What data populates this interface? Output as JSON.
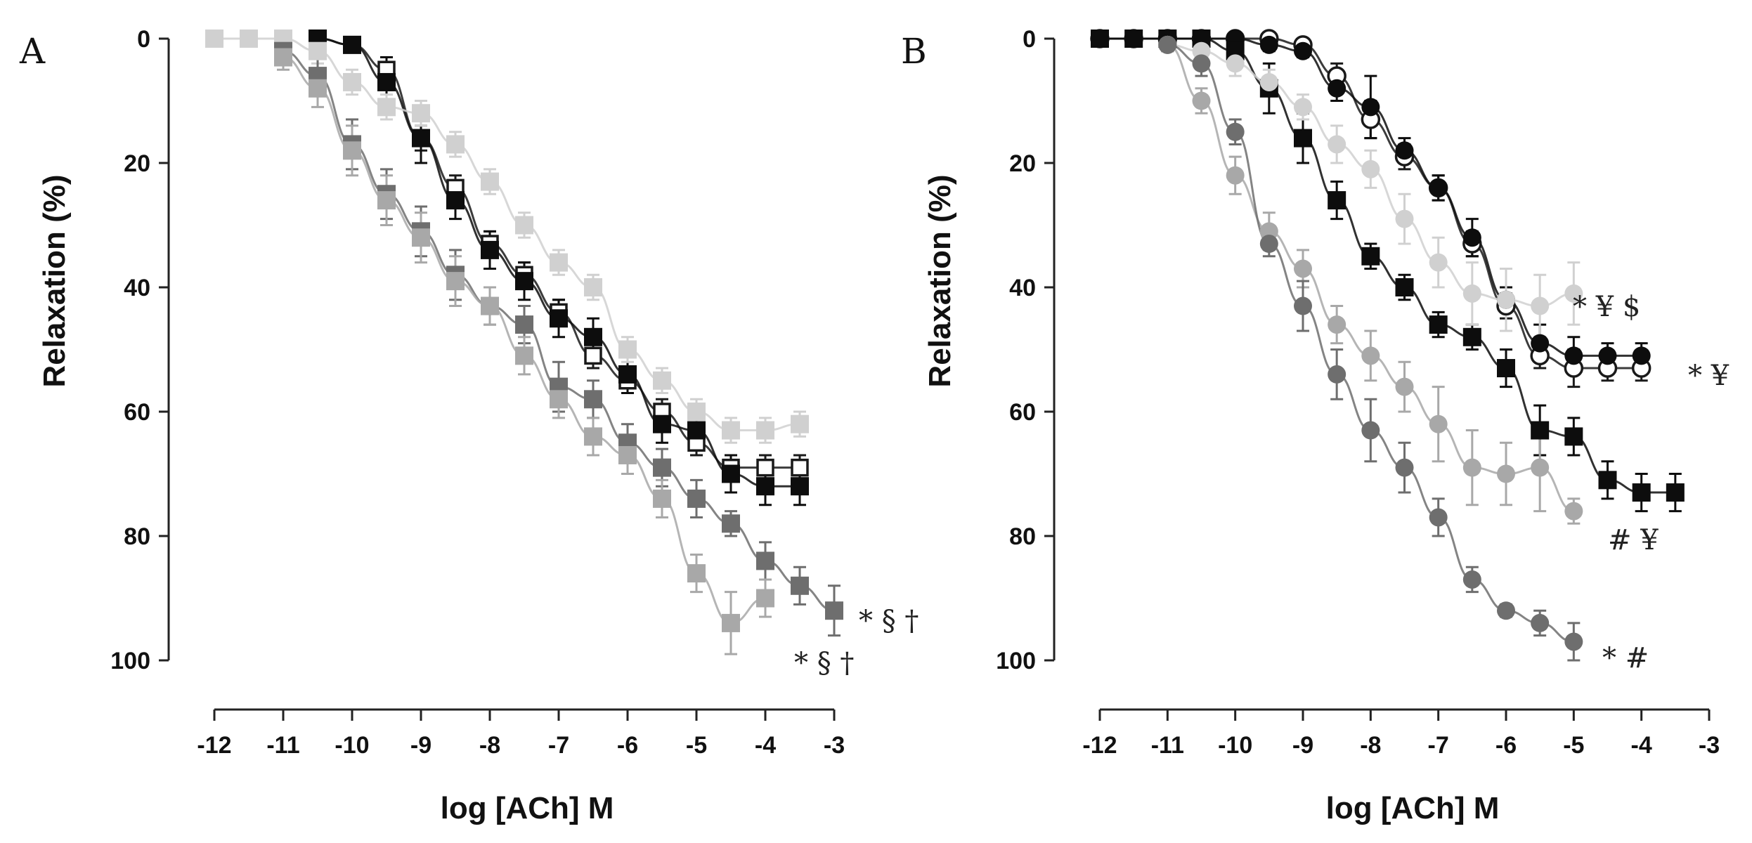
{
  "chart_data": [
    {
      "panel": "A",
      "type": "scatter",
      "xlabel": "log [ACh] M",
      "ylabel": "Relaxation (%)",
      "xlim": [
        -12,
        -3
      ],
      "ylim": [
        0,
        100
      ],
      "y_inverted": true,
      "x_ticks": [
        -12,
        -11,
        -10,
        -9,
        -8,
        -7,
        -6,
        -5,
        -4,
        -3
      ],
      "y_ticks": [
        0,
        20,
        40,
        60,
        80,
        100
      ],
      "series": [
        {
          "name": "open squares (black outline)",
          "marker": "square-open",
          "color": "#1a1a1a",
          "x": [
            -10.5,
            -10,
            -9.5,
            -9,
            -8.5,
            -8,
            -7.5,
            -7,
            -6.5,
            -6,
            -5.5,
            -5,
            -4.5,
            -4,
            -3.5
          ],
          "values": [
            0,
            1,
            5,
            16,
            24,
            33,
            38,
            44,
            51,
            55,
            60,
            65,
            69,
            69,
            69
          ],
          "errors": [
            1,
            1,
            2,
            2,
            2,
            2,
            2,
            2,
            2,
            2,
            2,
            2,
            2,
            2,
            2
          ]
        },
        {
          "name": "black filled squares",
          "marker": "square",
          "color": "#0d0d0d",
          "x": [
            -10.5,
            -10,
            -9.5,
            -9,
            -8.5,
            -8,
            -7.5,
            -7,
            -6.5,
            -6,
            -5.5,
            -5,
            -4.5,
            -4,
            -3.5
          ],
          "values": [
            0,
            1,
            7,
            16,
            26,
            34,
            39,
            45,
            48,
            54,
            62,
            63,
            70,
            72,
            72
          ],
          "errors": [
            1,
            1,
            4,
            4,
            3,
            3,
            3,
            3,
            3,
            3,
            3,
            3,
            3,
            3,
            3
          ]
        },
        {
          "name": "light gray squares",
          "marker": "square",
          "color": "#d0d0d0",
          "x": [
            -12,
            -11.5,
            -11,
            -10.5,
            -10,
            -9.5,
            -9,
            -8.5,
            -8,
            -7.5,
            -7,
            -6.5,
            -6,
            -5.5,
            -5,
            -4.5,
            -4,
            -3.5
          ],
          "values": [
            0,
            0,
            0,
            2,
            7,
            11,
            12,
            17,
            23,
            30,
            36,
            40,
            50,
            55,
            60,
            63,
            63,
            62
          ],
          "errors": [
            0,
            0,
            1,
            2,
            2,
            2,
            2,
            2,
            2,
            2,
            2,
            2,
            2,
            2,
            2,
            2,
            2,
            2
          ]
        },
        {
          "name": "dark gray squares",
          "marker": "square",
          "color": "#6e6e6e",
          "x": [
            -11,
            -10.5,
            -10,
            -9.5,
            -9,
            -8.5,
            -8,
            -7.5,
            -7,
            -6.5,
            -6,
            -5.5,
            -5,
            -4.5,
            -4,
            -3.5,
            -3
          ],
          "values": [
            2,
            6,
            17,
            25,
            31,
            38,
            43,
            46,
            56,
            58,
            65,
            69,
            74,
            78,
            84,
            88,
            92
          ],
          "errors": [
            2,
            3,
            4,
            4,
            4,
            4,
            3,
            3,
            4,
            3,
            3,
            3,
            3,
            2,
            3,
            3,
            4
          ]
        },
        {
          "name": "medium-light gray squares",
          "marker": "square",
          "color": "#a8a8a8",
          "x": [
            -11,
            -10.5,
            -10,
            -9.5,
            -9,
            -8.5,
            -8,
            -7.5,
            -7,
            -6.5,
            -6,
            -5.5,
            -5,
            -4.5,
            -4
          ],
          "values": [
            3,
            8,
            18,
            26,
            32,
            39,
            43,
            51,
            58,
            64,
            67,
            74,
            86,
            94,
            90
          ],
          "errors": [
            2,
            3,
            4,
            4,
            4,
            4,
            3,
            3,
            3,
            3,
            3,
            3,
            3,
            5,
            3
          ]
        }
      ],
      "annotations": [
        "* § †",
        "* § †"
      ]
    },
    {
      "panel": "B",
      "type": "scatter",
      "xlabel": "log [ACh] M",
      "ylabel": "Relaxation (%)",
      "xlim": [
        -12,
        -3
      ],
      "ylim": [
        0,
        100
      ],
      "y_inverted": true,
      "x_ticks": [
        -12,
        -11,
        -10,
        -9,
        -8,
        -7,
        -6,
        -5,
        -4,
        -3
      ],
      "y_ticks": [
        0,
        20,
        40,
        60,
        80,
        100
      ],
      "series": [
        {
          "name": "open circles",
          "marker": "circle-open",
          "color": "#1a1a1a",
          "x": [
            -12,
            -11.5,
            -11,
            -10.5,
            -10,
            -9.5,
            -9,
            -8.5,
            -8,
            -7.5,
            -7,
            -6.5,
            -6,
            -5.5,
            -5,
            -4.5,
            -4
          ],
          "values": [
            0,
            0,
            0,
            0,
            0,
            0,
            1,
            6,
            13,
            19,
            24,
            33,
            43,
            51,
            53,
            53,
            53
          ],
          "errors": [
            0,
            0,
            0,
            0,
            0,
            1,
            1,
            2,
            3,
            2,
            2,
            2,
            2,
            2,
            3,
            2,
            2
          ]
        },
        {
          "name": "black filled circles",
          "marker": "circle",
          "color": "#0d0d0d",
          "x": [
            -12,
            -11.5,
            -11,
            -10.5,
            -10,
            -9.5,
            -9,
            -8.5,
            -8,
            -7.5,
            -7,
            -6.5,
            -6,
            -5.5,
            -5,
            -4.5,
            -4
          ],
          "values": [
            0,
            0,
            0,
            0,
            0,
            1,
            2,
            8,
            11,
            18,
            24,
            32,
            42,
            49,
            51,
            51,
            51
          ],
          "errors": [
            0,
            0,
            0,
            0,
            0,
            1,
            1,
            2,
            5,
            2,
            2,
            3,
            2,
            3,
            3,
            2,
            2
          ]
        },
        {
          "name": "black filled squares",
          "marker": "square",
          "color": "#0d0d0d",
          "x": [
            -12,
            -11.5,
            -11,
            -10.5,
            -10,
            -9.5,
            -9,
            -8.5,
            -8,
            -7.5,
            -7,
            -6.5,
            -6,
            -5.5,
            -5,
            -4.5,
            -4,
            -3.5
          ],
          "values": [
            0,
            0,
            0,
            0,
            2,
            8,
            16,
            26,
            35,
            40,
            46,
            48,
            53,
            63,
            64,
            71,
            73,
            73
          ],
          "errors": [
            0,
            0,
            0,
            0,
            2,
            4,
            4,
            3,
            2,
            2,
            2,
            2,
            3,
            4,
            3,
            3,
            3,
            3
          ]
        },
        {
          "name": "light gray circles",
          "marker": "circle",
          "color": "#d0d0d0",
          "x": [
            -11,
            -10.5,
            -10,
            -9.5,
            -9,
            -8.5,
            -8,
            -7.5,
            -7,
            -6.5,
            -6,
            -5.5,
            -5
          ],
          "values": [
            1,
            2,
            4,
            7,
            11,
            17,
            21,
            29,
            36,
            41,
            42,
            43,
            41
          ],
          "errors": [
            1,
            1,
            2,
            2,
            2,
            3,
            3,
            4,
            4,
            5,
            5,
            5,
            5
          ]
        },
        {
          "name": "medium-gray circles",
          "marker": "circle",
          "color": "#a8a8a8",
          "x": [
            -11,
            -10.5,
            -10,
            -9.5,
            -9,
            -8.5,
            -8,
            -7.5,
            -7,
            -6.5,
            -6,
            -5.5,
            -5
          ],
          "values": [
            1,
            10,
            22,
            31,
            37,
            46,
            51,
            56,
            62,
            69,
            70,
            69,
            76
          ],
          "errors": [
            1,
            2,
            3,
            3,
            3,
            3,
            4,
            4,
            6,
            6,
            5,
            7,
            2
          ]
        },
        {
          "name": "dark gray circles",
          "marker": "circle",
          "color": "#6e6e6e",
          "x": [
            -11,
            -10.5,
            -10,
            -9.5,
            -9,
            -8.5,
            -8,
            -7.5,
            -7,
            -6.5,
            -6,
            -5.5,
            -5
          ],
          "values": [
            1,
            4,
            15,
            33,
            43,
            54,
            63,
            69,
            77,
            87,
            92,
            94,
            97
          ],
          "errors": [
            1,
            2,
            2,
            2,
            4,
            4,
            5,
            4,
            3,
            2,
            1,
            2,
            3
          ]
        }
      ],
      "annotations": [
        "* ¥ $",
        "* ¥",
        "# ¥",
        "* #"
      ]
    }
  ]
}
